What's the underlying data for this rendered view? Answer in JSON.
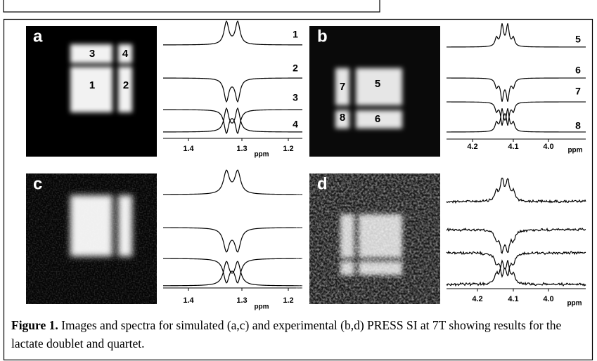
{
  "panels": [
    {
      "label": "a",
      "regions": [
        "1",
        "2",
        "3",
        "4"
      ],
      "spectra": [
        "1",
        "2",
        "3",
        "4"
      ],
      "ticks": [
        "1.4",
        "1.3",
        "1.2"
      ],
      "unit": "ppm"
    },
    {
      "label": "b",
      "regions": [
        "5",
        "6",
        "7",
        "8"
      ],
      "spectra": [
        "5",
        "6",
        "7",
        "8"
      ],
      "ticks": [
        "4.2",
        "4.1",
        "4.0"
      ],
      "unit": "ppm"
    },
    {
      "label": "c",
      "ticks": [
        "1.4",
        "1.3",
        "1.2"
      ],
      "unit": "ppm"
    },
    {
      "label": "d",
      "ticks": [
        "4.2",
        "4.1",
        "4.0"
      ],
      "unit": "ppm"
    }
  ],
  "caption": {
    "label": "Figure 1.",
    "text": " Images and spectra for simulated (a,c) and experimental (b,d) PRESS SI at 7T showing results for the lactate doublet and quartet."
  }
}
